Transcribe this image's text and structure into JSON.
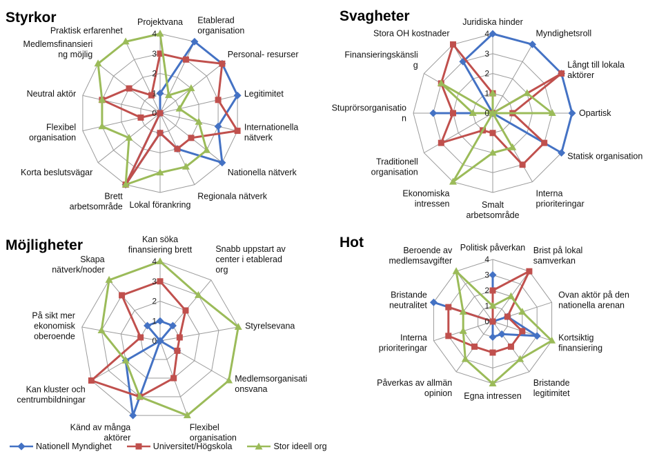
{
  "series_names": [
    "Nationell Myndighet",
    "Universitet/Högskola",
    "Stor ideell org"
  ],
  "colors": [
    "#4472C4",
    "#C0504D",
    "#9BBB59"
  ],
  "chart_data": [
    {
      "type": "radar",
      "title": "Styrkor",
      "rlim": [
        0,
        4
      ],
      "ticks": [
        "0",
        "1",
        "2",
        "3",
        "4"
      ],
      "categories": [
        "Projektvana",
        "Etablerad organisation",
        "Personal- resurser",
        "Legitimitet",
        "Internationella nätverk",
        "Nationella nätverk",
        "Regionala nätverk",
        "Lokal förankring",
        "Brett arbetsområde",
        "Korta beslutsvägar",
        "Flexibel organisation",
        "Neutral aktör",
        "Medlemsfinansieri ng möjlig",
        "Praktisk erfarenhet"
      ],
      "labels": [
        [
          "Projektvana"
        ],
        [
          "Etablerad",
          "organisation"
        ],
        [
          "Personal- resurser"
        ],
        [
          "Legitimitet"
        ],
        [
          "Internationella",
          "nätverk"
        ],
        [
          "Nationella nätverk"
        ],
        [
          "Regionala nätverk"
        ],
        [
          "Lokal förankring"
        ],
        [
          "Brett",
          "arbetsområde"
        ],
        [
          "Korta beslutsvägar"
        ],
        [
          "Flexibel",
          "organisation"
        ],
        [
          "Neutral aktör"
        ],
        [
          "Medlemsfinansieri",
          "ng möjlig"
        ],
        [
          "Praktisk erfarenhet"
        ]
      ],
      "series": [
        {
          "name": "Nationell Myndighet",
          "values": [
            1,
            4,
            4,
            4,
            3,
            4,
            2,
            1,
            4,
            0,
            0,
            0,
            0,
            0
          ]
        },
        {
          "name": "Universitet/Högskola",
          "values": [
            3,
            3,
            4,
            3,
            4,
            2,
            2,
            1,
            4,
            0,
            1,
            3,
            2,
            1
          ]
        },
        {
          "name": "Stor ideell org",
          "values": [
            4,
            1,
            2,
            1,
            2,
            3,
            3,
            3,
            4,
            2,
            3,
            3,
            4,
            4
          ]
        }
      ]
    },
    {
      "type": "radar",
      "title": "Svagheter",
      "rlim": [
        0,
        4
      ],
      "ticks": [
        "0",
        "1",
        "2",
        "3",
        "4"
      ],
      "categories": [
        "Juridiska hinder",
        "Myndighetsroll",
        "Långt till lokala aktörer",
        "Opartisk",
        "Statisk organisation",
        "Interna prioriteringar",
        "Smalt arbetsområde",
        "Ekonomiska intressen",
        "Traditionell organisation",
        "Stuprörsorganisation",
        "Finansieringskänslig",
        "Stora OH kostnader"
      ],
      "labels": [
        [
          "Juridiska hinder"
        ],
        [
          "Myndighetsroll"
        ],
        [
          "Långt till lokala",
          "aktörer"
        ],
        [
          "Opartisk"
        ],
        [
          "Statisk organisation"
        ],
        [
          "Interna",
          "prioriteringar"
        ],
        [
          "Smalt",
          "arbetsområde"
        ],
        [
          "Ekonomiska",
          "intressen"
        ],
        [
          "Traditionell",
          "organisation"
        ],
        [
          "Stuprörsorganisatio",
          "n"
        ],
        [
          "Finansieringskänsli",
          "g"
        ],
        [
          "Stora OH kostnader"
        ]
      ],
      "series": [
        {
          "name": "Nationell Myndighet",
          "values": [
            4,
            4,
            4,
            4,
            4,
            0,
            0,
            0,
            0,
            3,
            0,
            3
          ]
        },
        {
          "name": "Universitet/Högskola",
          "values": [
            1,
            0,
            4,
            1,
            3,
            3,
            1,
            1,
            3,
            2,
            3,
            4
          ]
        },
        {
          "name": "Stor ideell org",
          "values": [
            1,
            0,
            2,
            3,
            0,
            2,
            2,
            4,
            0,
            1,
            3,
            0
          ]
        }
      ]
    },
    {
      "type": "radar",
      "title": "Möjligheter",
      "rlim": [
        0,
        4
      ],
      "ticks": [
        "0",
        "1",
        "2",
        "3",
        "4"
      ],
      "categories": [
        "Kan söka finansiering brett",
        "Snabb uppstart av center i etablerad org",
        "Styrelsevana",
        "Medlemsorganisationsvana",
        "Flexibel organisation",
        "Känd av många aktörer",
        "Kan kluster och centrumbildningar",
        "På sikt mer ekonomisk oberoende",
        "Skapa nätverk/noder"
      ],
      "labels": [
        [
          "Kan söka",
          "finansiering brett"
        ],
        [
          "Snabb uppstart av",
          "center i etablerad",
          "org"
        ],
        [
          "Styrelsevana"
        ],
        [
          "Medlemsorganisati",
          "onsvana"
        ],
        [
          "Flexibel",
          "organisation"
        ],
        [
          "Känd av många",
          "aktörer"
        ],
        [
          "Kan kluster och",
          "centrumbildningar"
        ],
        [
          "På sikt mer",
          "ekonomisk",
          "oberoende"
        ],
        [
          "Skapa",
          "nätverk/noder"
        ]
      ],
      "series": [
        {
          "name": "Nationell Myndighet",
          "values": [
            1,
            1,
            0,
            1,
            0,
            4,
            2,
            0,
            1
          ]
        },
        {
          "name": "Universitet/Högskola",
          "values": [
            3,
            2,
            1,
            1,
            2,
            3,
            4,
            1,
            3
          ]
        },
        {
          "name": "Stor ideell org",
          "values": [
            4,
            3,
            4,
            4,
            4,
            3,
            2,
            3,
            4
          ]
        }
      ]
    },
    {
      "type": "radar",
      "title": "Hot",
      "rlim": [
        0,
        4
      ],
      "ticks": [
        "0",
        "1",
        "2",
        "3",
        "4"
      ],
      "categories": [
        "Politisk påverkan",
        "Brist på lokal samverkan",
        "Ovan aktör på den nationella arenan",
        "Kortsiktig finansiering",
        "Bristande legitimitet",
        "Egna intressen",
        "Påverkas av allmän opinion",
        "Interna prioriteringar",
        "Bristande neutralitet",
        "Beroende av medlemsavgifter"
      ],
      "labels": [
        [
          "Politisk påverkan"
        ],
        [
          "Brist på lokal",
          "samverkan"
        ],
        [
          "Ovan aktör på den",
          "nationella arenan"
        ],
        [
          "Kortsiktig",
          "finansiering"
        ],
        [
          "Bristande",
          "legitimitet"
        ],
        [
          "Egna intressen"
        ],
        [
          "Påverkas av allmän",
          "opinion"
        ],
        [
          "Interna",
          "prioriteringar"
        ],
        [
          "Bristande",
          "neutralitet"
        ],
        [
          "Beroende av",
          "medlemsavgifter"
        ]
      ],
      "series": [
        {
          "name": "Nationell Myndighet",
          "values": [
            3,
            0,
            1,
            3,
            1,
            1,
            0,
            0,
            4,
            0
          ]
        },
        {
          "name": "Universitet/Högskola",
          "values": [
            2,
            4,
            1,
            2,
            2,
            2,
            2,
            3,
            3,
            0
          ]
        },
        {
          "name": "Stor ideell org",
          "values": [
            1,
            2,
            2,
            4,
            3,
            4,
            3,
            2,
            2,
            4
          ]
        }
      ]
    }
  ]
}
